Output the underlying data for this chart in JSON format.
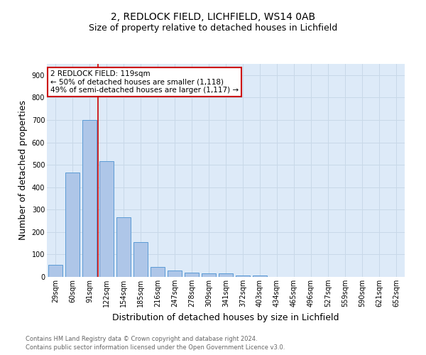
{
  "title1": "2, REDLOCK FIELD, LICHFIELD, WS14 0AB",
  "title2": "Size of property relative to detached houses in Lichfield",
  "xlabel": "Distribution of detached houses by size in Lichfield",
  "ylabel": "Number of detached properties",
  "footnote1": "Contains HM Land Registry data © Crown copyright and database right 2024.",
  "footnote2": "Contains public sector information licensed under the Open Government Licence v3.0.",
  "categories": [
    "29sqm",
    "60sqm",
    "91sqm",
    "122sqm",
    "154sqm",
    "185sqm",
    "216sqm",
    "247sqm",
    "278sqm",
    "309sqm",
    "341sqm",
    "372sqm",
    "403sqm",
    "434sqm",
    "465sqm",
    "496sqm",
    "527sqm",
    "559sqm",
    "590sqm",
    "621sqm",
    "652sqm"
  ],
  "values": [
    55,
    465,
    700,
    515,
    265,
    155,
    45,
    30,
    20,
    15,
    15,
    5,
    7,
    0,
    0,
    0,
    0,
    0,
    0,
    0,
    0
  ],
  "bar_color": "#aec6e8",
  "bar_edge_color": "#5b9bd5",
  "grid_color": "#c8d8e8",
  "background_color": "#ddeaf8",
  "vline_color": "#cc0000",
  "vline_pos": 3.0,
  "annotation_line1": "2 REDLOCK FIELD: 119sqm",
  "annotation_line2": "← 50% of detached houses are smaller (1,118)",
  "annotation_line3": "49% of semi-detached houses are larger (1,117) →",
  "annotation_box_color": "#ffffff",
  "annotation_box_edge": "#cc0000",
  "ylim": [
    0,
    950
  ],
  "yticks": [
    0,
    100,
    200,
    300,
    400,
    500,
    600,
    700,
    800,
    900
  ],
  "title1_fontsize": 10,
  "title2_fontsize": 9,
  "ylabel_fontsize": 9,
  "xlabel_fontsize": 9,
  "tick_fontsize": 7,
  "footnote_fontsize": 6,
  "footnote_color": "#666666"
}
